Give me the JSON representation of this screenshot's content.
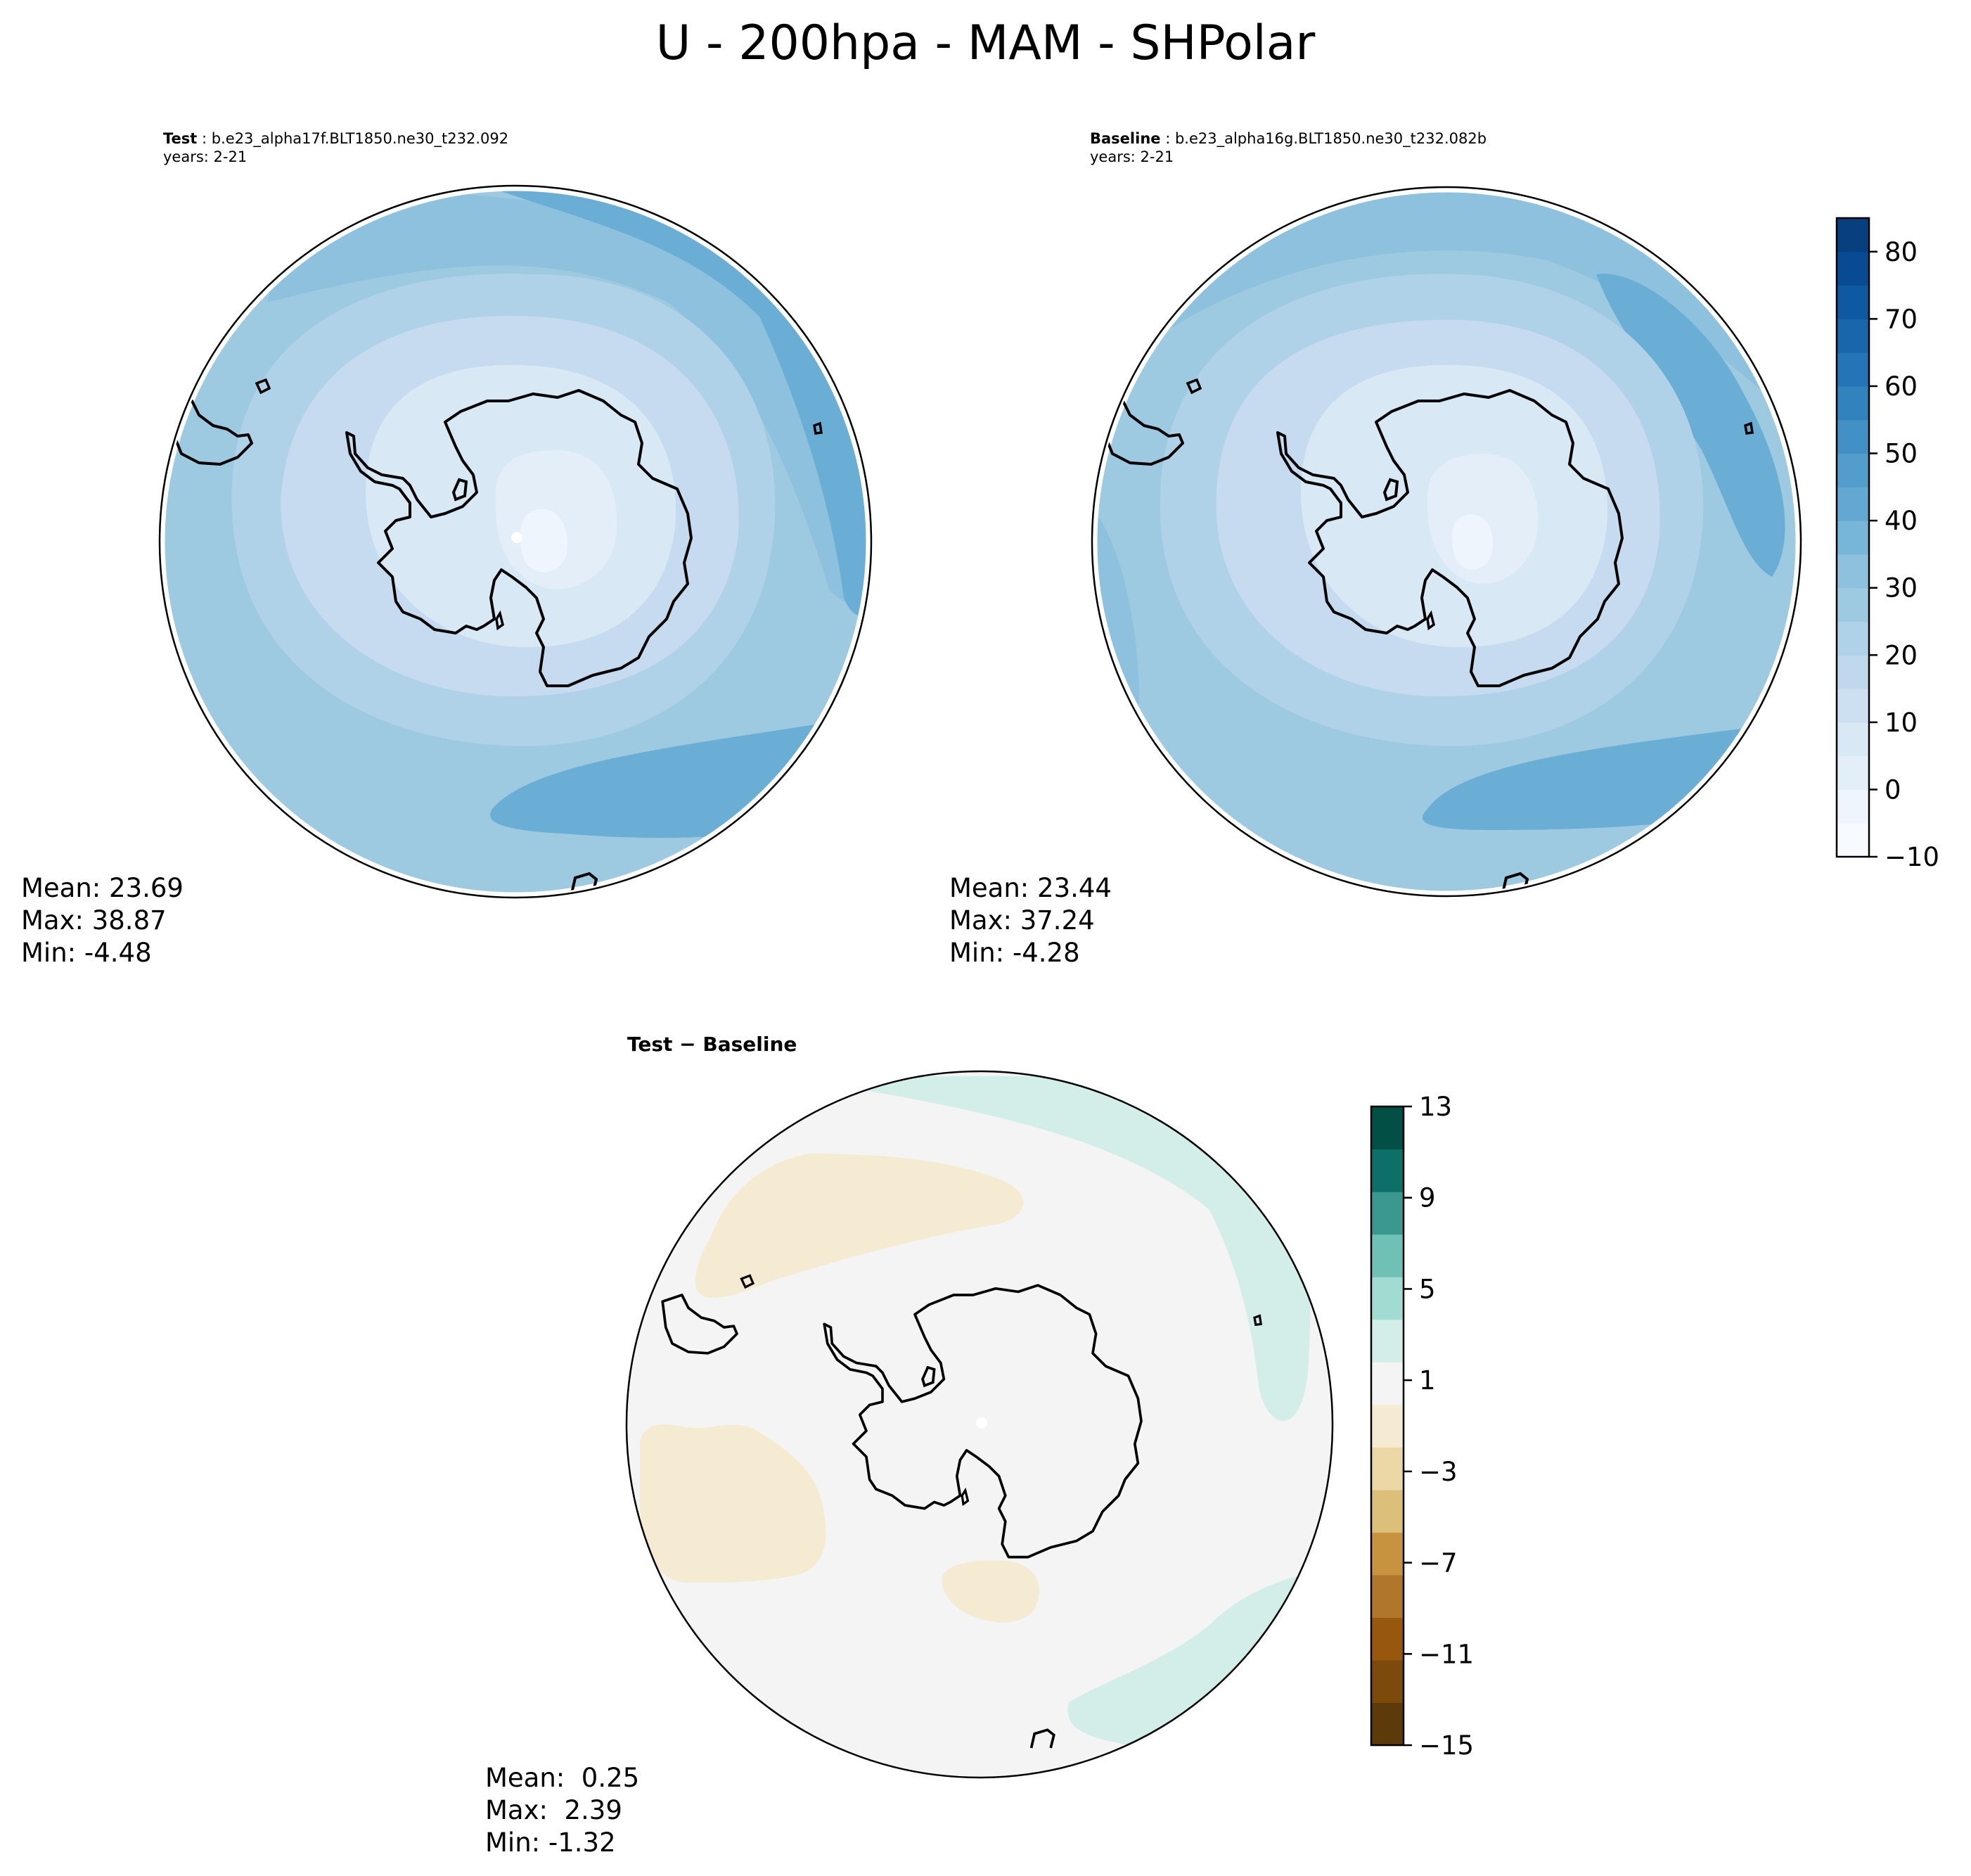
{
  "figure": {
    "title": "U - 200hpa - MAM - SHPolar"
  },
  "panels": [
    {
      "id": "test",
      "label": "Test",
      "case": "b.e23_alpha17f.BLT1850.ne30_t232.092",
      "years": "years: 2-21",
      "stats": {
        "mean": "Mean: 23.69",
        "max": "Max: 38.87",
        "min": "Min: -4.48"
      }
    },
    {
      "id": "baseline",
      "label": "Baseline",
      "case": "b.e23_alpha16g.BLT1850.ne30_t232.082b",
      "years": "years: 2-21",
      "stats": {
        "mean": "Mean: 23.44",
        "max": "Max: 37.24",
        "min": "Min: -4.28"
      }
    },
    {
      "id": "difference",
      "label": "Test − Baseline",
      "stats": {
        "mean": "Mean:  0.25",
        "max": "Max:  2.39",
        "min": "Min: -1.32"
      }
    }
  ],
  "colorbars": {
    "field": {
      "colormap": "Blues",
      "range": [
        -10,
        85
      ],
      "ticks": [
        "80",
        "70",
        "60",
        "50",
        "40",
        "30",
        "20",
        "10",
        "0",
        "−10"
      ],
      "tick_values": [
        80,
        70,
        60,
        50,
        40,
        30,
        20,
        10,
        0,
        -10
      ],
      "colors": [
        "#f7fbff",
        "#eef5fc",
        "#e3eef9",
        "#d9e8f5",
        "#cde0f1",
        "#bfd8ed",
        "#b0d2e8",
        "#9ecae1",
        "#8dc1dd",
        "#77b5d9",
        "#63a8d3",
        "#529dcc",
        "#4290c5",
        "#3282be",
        "#2474b7",
        "#1966ad",
        "#0f59a3",
        "#084b94",
        "#08407f"
      ]
    },
    "difference": {
      "colormap": "BrBG",
      "range": [
        -15,
        13
      ],
      "ticks": [
        "13",
        "9",
        "5",
        "1",
        "−3",
        "−7",
        "−11",
        "−15"
      ],
      "tick_values": [
        13,
        9,
        5,
        1,
        -3,
        -7,
        -11,
        -15
      ],
      "colors": [
        "#5c3a0a",
        "#7c4a0b",
        "#98570f",
        "#b0762b",
        "#c8933f",
        "#dcc07a",
        "#ebd8a6",
        "#f5ebd3",
        "#f4f4f4",
        "#d3ede9",
        "#a0dcd2",
        "#6fc1b5",
        "#3a9890",
        "#0c7069",
        "#024f45"
      ]
    }
  }
}
